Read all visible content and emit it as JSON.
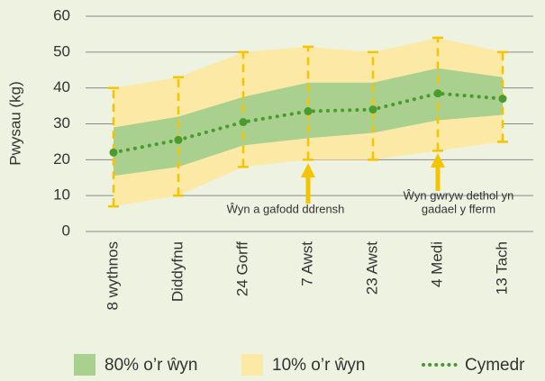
{
  "chart_data": {
    "type": "band-line",
    "y_label": "Pwysau (kg)",
    "categories": [
      "8 wythnos",
      "Diddyfnu",
      "24 Gorff",
      "7 Awst",
      "23 Awst",
      "4 Medi",
      "13 Tach"
    ],
    "ylim": [
      0,
      60
    ],
    "yticks": [
      0,
      10,
      20,
      30,
      40,
      50,
      60
    ],
    "grid": true,
    "series": [
      {
        "name": "80% o’r ŵyn",
        "color": "#a9d08e",
        "lower": [
          15.5,
          18,
          24,
          26,
          27.5,
          31,
          32.5
        ],
        "upper": [
          29,
          32,
          37.5,
          41.5,
          41.5,
          45.5,
          43
        ]
      },
      {
        "name": "10% o’r ŵyn",
        "color": "#fde9a6",
        "lower": [
          7,
          10,
          18,
          20,
          20,
          22.5,
          25
        ],
        "upper": [
          40,
          43,
          50,
          51.5,
          50,
          54,
          50
        ]
      },
      {
        "name": "Cymedr",
        "color": "#4a9b2e",
        "values": [
          22,
          25.5,
          30.5,
          33.5,
          34,
          38.5,
          37
        ]
      }
    ],
    "range_line_color": "#f5c400",
    "annotations": [
      {
        "lines": [
          "Ŵyn a gafodd ddrensh"
        ]
      },
      {
        "lines": [
          "Ŵyn gwryw dethol yn",
          "gadael y fferm"
        ]
      }
    ]
  }
}
